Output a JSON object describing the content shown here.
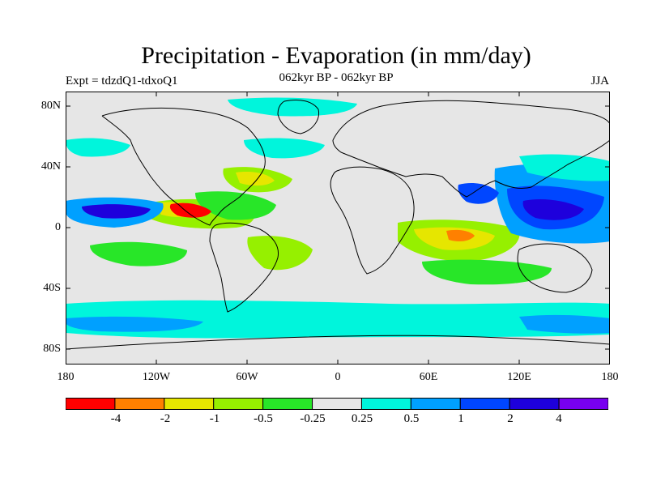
{
  "title": "Precipitation - Evaporation (in mm/day)",
  "experiment": "Expt = tdzdQ1-tdxoQ1",
  "period": "062kyr BP - 062kyr BP",
  "season": "JJA",
  "lat_labels": [
    "80N",
    "40N",
    "0",
    "40S",
    "80S"
  ],
  "lon_labels": [
    "180",
    "120W",
    "60W",
    "0",
    "60E",
    "120E",
    "180"
  ],
  "colorbar": {
    "labels": [
      "-4",
      "-2",
      "-1",
      "-0.5",
      "-0.25",
      "0.25",
      "0.5",
      "1",
      "2",
      "4"
    ],
    "colors": [
      "#ff0000",
      "#ff8000",
      "#e6e600",
      "#96f000",
      "#28e628",
      "#e6e6e6",
      "#00f5dc",
      "#00a0ff",
      "#0046ff",
      "#1e00dc",
      "#7800f0"
    ]
  },
  "colors": {
    "background": "#e6e6e6",
    "coast": "#000000"
  }
}
